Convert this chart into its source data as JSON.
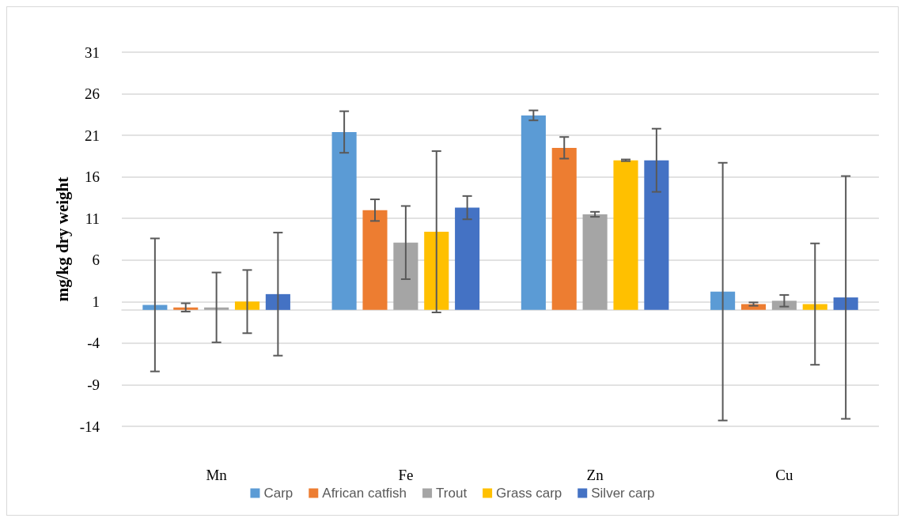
{
  "chart_data": {
    "type": "bar",
    "ylabel": "mg/kg dry weight",
    "categories": [
      "Mn",
      "Fe",
      "Zn",
      "Cu"
    ],
    "series": [
      {
        "name": "Carp",
        "color": "#5b9bd5",
        "values": [
          0.6,
          21.4,
          23.4,
          2.2
        ],
        "errors": [
          8,
          2.5,
          0.6,
          15.5
        ]
      },
      {
        "name": "African catfish",
        "color": "#ed7d31",
        "values": [
          0.3,
          12.0,
          19.5,
          0.7
        ],
        "errors": [
          0.5,
          1.3,
          1.3,
          0.2
        ]
      },
      {
        "name": "Trout",
        "color": "#a5a5a5",
        "values": [
          0.3,
          8.1,
          11.5,
          1.1
        ],
        "errors": [
          4.2,
          4.4,
          0.3,
          0.7
        ]
      },
      {
        "name": "Grass carp",
        "color": "#ffc000",
        "values": [
          1.0,
          9.4,
          18.0,
          0.7
        ],
        "errors": [
          3.8,
          9.7,
          0.1,
          7.3
        ]
      },
      {
        "name": "Silver carp",
        "color": "#4472c4",
        "values": [
          1.9,
          12.3,
          18.0,
          1.5
        ],
        "errors": [
          7.4,
          1.4,
          3.8,
          14.6
        ]
      }
    ],
    "ylim": [
      -14,
      31
    ],
    "yticks": [
      -14,
      -9,
      -4,
      1,
      6,
      11,
      16,
      21,
      26,
      31
    ],
    "grid": "y",
    "legend": "bottom"
  }
}
